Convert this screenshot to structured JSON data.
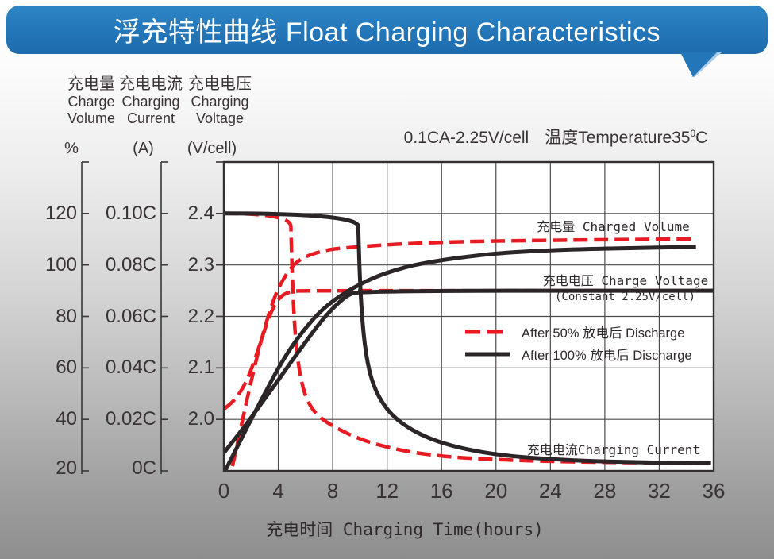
{
  "header": {
    "title": "浮充特性曲线 Float Charging Characteristics"
  },
  "subtitle": {
    "part1": "0.1CA-2.25V/cell",
    "part2": "温度Temperature35",
    "sup": "0",
    "part3": "C"
  },
  "chart_data": {
    "type": "line",
    "title": "浮充特性曲线 Float Charging Characteristics",
    "condition": "0.1CA-2.25V/cell 温度Temperature35°C",
    "xlabel": "充电时间 Charging Time(hours)",
    "x_axis": {
      "min": 0,
      "max": 36,
      "tick_step": 4,
      "tick_labels": [
        "0",
        "4",
        "8",
        "12",
        "16",
        "20",
        "24",
        "28",
        "32",
        "36"
      ]
    },
    "y_axes": [
      {
        "id": "volume",
        "zh": "充电量",
        "en1": "Charge",
        "en2": "Volume",
        "unit": "%",
        "top_row_value": 120,
        "step_per_row": 20,
        "tick_labels": [
          "120",
          "100",
          "80",
          "60",
          "40",
          "20"
        ]
      },
      {
        "id": "current",
        "zh": "充电电流",
        "en1": "Charging",
        "en2": "Current",
        "unit": "(A)",
        "top_row_value": 0.1,
        "step_per_row": 0.02,
        "tick_labels": [
          "0.10C",
          "0.08C",
          "0.06C",
          "0.04C",
          "0.02C",
          "0C"
        ]
      },
      {
        "id": "voltage",
        "zh": "充电电压",
        "en1": "Charging",
        "en2": "Voltage",
        "unit": "(V/cell)",
        "top_row_value": 2.4,
        "step_per_row": 0.1,
        "tick_labels": [
          "2.4",
          "2.3",
          "2.2",
          "2.1",
          "2.0"
        ]
      }
    ],
    "colors": {
      "red": "#e81b23",
      "black": "#2b2527",
      "grid": "#4e4a4c",
      "frame": "#332f31",
      "axis": "#3a3638"
    },
    "series": [
      {
        "id": "charge-voltage-50",
        "quantity": "voltage",
        "condition": "after 50% discharge",
        "color": "red",
        "dash": true,
        "width": 4.5,
        "points": [
          [
            0,
            2.02
          ],
          [
            0.6,
            2.032
          ],
          [
            1.2,
            2.052
          ],
          [
            1.8,
            2.082
          ],
          [
            2.3,
            2.118
          ],
          [
            2.8,
            2.158
          ],
          [
            3.3,
            2.198
          ],
          [
            3.8,
            2.226
          ],
          [
            4.3,
            2.242
          ],
          [
            5,
            2.249
          ],
          [
            6,
            2.25
          ],
          [
            36,
            2.25
          ]
        ]
      },
      {
        "id": "charged-volume-50",
        "quantity": "volume",
        "condition": "after 50% discharge",
        "color": "red",
        "dash": true,
        "width": 4.5,
        "points": [
          [
            0.3,
            14
          ],
          [
            0.9,
            28
          ],
          [
            1.5,
            43
          ],
          [
            2.1,
            57
          ],
          [
            2.7,
            70
          ],
          [
            3.3,
            81
          ],
          [
            3.9,
            90
          ],
          [
            4.6,
            96.5
          ],
          [
            5.2,
            100.5
          ],
          [
            5.9,
            103
          ],
          [
            6.9,
            105
          ],
          [
            8,
            106.2
          ],
          [
            9.5,
            106.9
          ],
          [
            11.5,
            107.7
          ],
          [
            14,
            108.4
          ],
          [
            17,
            109
          ],
          [
            21,
            109.4
          ],
          [
            26,
            109.7
          ],
          [
            30,
            109.9
          ],
          [
            34.7,
            110.1
          ]
        ]
      },
      {
        "id": "charging-current-50",
        "quantity": "current",
        "condition": "after 50% discharge",
        "color": "red",
        "dash": true,
        "width": 4.5,
        "points": [
          [
            0,
            0.1
          ],
          [
            4.9,
            0.1
          ],
          [
            4.95,
            0.09
          ],
          [
            5.05,
            0.072
          ],
          [
            5.2,
            0.056
          ],
          [
            5.4,
            0.044
          ],
          [
            5.7,
            0.0345
          ],
          [
            6.1,
            0.0275
          ],
          [
            6.7,
            0.0225
          ],
          [
            7.5,
            0.019
          ],
          [
            8.5,
            0.016
          ],
          [
            9.7,
            0.013
          ],
          [
            11,
            0.0106
          ],
          [
            12.5,
            0.0086
          ],
          [
            14,
            0.0071
          ],
          [
            16,
            0.0057
          ],
          [
            18,
            0.0049
          ],
          [
            21,
            0.0042
          ],
          [
            24,
            0.0037
          ],
          [
            27,
            0.0034
          ],
          [
            30,
            0.0032
          ],
          [
            33,
            0.0031
          ],
          [
            35.8,
            0.003
          ]
        ]
      },
      {
        "id": "charge-voltage-100",
        "quantity": "voltage",
        "condition": "after 100% discharge",
        "color": "black",
        "dash": false,
        "width": 5,
        "points": [
          [
            0,
            1.935
          ],
          [
            1,
            1.968
          ],
          [
            2,
            2.003
          ],
          [
            3,
            2.04
          ],
          [
            4,
            2.076
          ],
          [
            5,
            2.114
          ],
          [
            6,
            2.15
          ],
          [
            7,
            2.186
          ],
          [
            8,
            2.216
          ],
          [
            9,
            2.24
          ],
          [
            9.9,
            2.25
          ],
          [
            36,
            2.25
          ]
        ]
      },
      {
        "id": "charged-volume-100",
        "quantity": "volume",
        "condition": "after 100% discharge",
        "color": "black",
        "dash": false,
        "width": 5,
        "points": [
          [
            0,
            19
          ],
          [
            1,
            29.5
          ],
          [
            2,
            40
          ],
          [
            3,
            50
          ],
          [
            4,
            60
          ],
          [
            5,
            68.5
          ],
          [
            6,
            75.5
          ],
          [
            7,
            81.5
          ],
          [
            8,
            86
          ],
          [
            9,
            89.5
          ],
          [
            10,
            92.5
          ],
          [
            11,
            95
          ],
          [
            12,
            97
          ],
          [
            13,
            98.6
          ],
          [
            14,
            100
          ],
          [
            16,
            101.9
          ],
          [
            18,
            103.3
          ],
          [
            20,
            104.5
          ],
          [
            23,
            105.5
          ],
          [
            26,
            106.1
          ],
          [
            30,
            106.6
          ],
          [
            34.7,
            107
          ]
        ]
      },
      {
        "id": "charging-current-100",
        "quantity": "current",
        "condition": "after 100% discharge",
        "color": "black",
        "dash": false,
        "width": 5,
        "points": [
          [
            0,
            0.1
          ],
          [
            9.85,
            0.1
          ],
          [
            9.9,
            0.09
          ],
          [
            10,
            0.074
          ],
          [
            10.15,
            0.06
          ],
          [
            10.35,
            0.049
          ],
          [
            10.65,
            0.0395
          ],
          [
            11.05,
            0.0325
          ],
          [
            11.6,
            0.0268
          ],
          [
            12.3,
            0.022
          ],
          [
            13.2,
            0.018
          ],
          [
            14.2,
            0.0148
          ],
          [
            15.4,
            0.012
          ],
          [
            16.8,
            0.0097
          ],
          [
            18.2,
            0.008
          ],
          [
            20,
            0.0064
          ],
          [
            22,
            0.0053
          ],
          [
            24.5,
            0.0044
          ],
          [
            27,
            0.0038
          ],
          [
            30,
            0.0034
          ],
          [
            33,
            0.0031
          ],
          [
            35.8,
            0.003
          ]
        ]
      }
    ],
    "annotations": {
      "charged_volume": "充电量 Charged Volume",
      "charge_voltage": "充电电压 Charge Voltage",
      "constant": "(Constant 2.25V/cell)",
      "charging_current": "充电电流Charging Current"
    },
    "legend": [
      {
        "label": "After 50% 放电后 Discharge",
        "color": "red",
        "dash": true
      },
      {
        "label": "After 100% 放电后 Discharge",
        "color": "black",
        "dash": false
      }
    ],
    "grid": true,
    "legend_position": "inside middle-right"
  }
}
